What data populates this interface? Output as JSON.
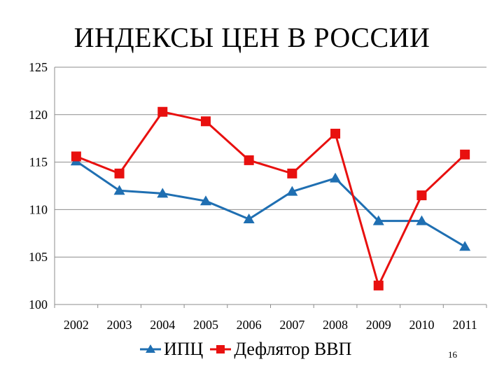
{
  "slide": {
    "title": "ИНДЕКСЫ ЦЕН В РОССИИ",
    "page_number": "16"
  },
  "chart_data": {
    "type": "line",
    "title": "ИНДЕКСЫ ЦЕН В РОССИИ",
    "categories": [
      "2002",
      "2003",
      "2004",
      "2005",
      "2006",
      "2007",
      "2008",
      "2009",
      "2010",
      "2011"
    ],
    "series": [
      {
        "name": "ИПЦ",
        "color": "#1F6FB2",
        "marker": "triangle",
        "values": [
          115.1,
          112.0,
          111.7,
          110.9,
          109.0,
          111.9,
          113.3,
          108.8,
          108.8,
          106.1
        ]
      },
      {
        "name": "Дефлятор ВВП",
        "color": "#E8100F",
        "marker": "square",
        "values": [
          115.6,
          113.8,
          120.3,
          119.3,
          115.2,
          113.8,
          118.0,
          102.0,
          111.5,
          115.8
        ]
      }
    ],
    "y_ticks": [
      "100",
      "105",
      "110",
      "115",
      "120",
      "125"
    ],
    "ylim": [
      100,
      125
    ],
    "grid": true,
    "legend_position": "bottom"
  }
}
